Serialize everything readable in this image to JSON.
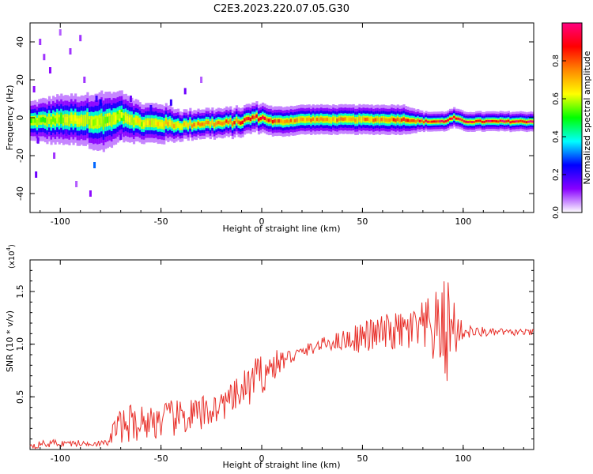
{
  "title": "C2E3.2023.220.07.05.G30",
  "chart_data": [
    {
      "type": "heatmap",
      "xlabel": "Height of straight line (km)",
      "ylabel": "Frequency (Hz)",
      "xlim": [
        -115,
        135
      ],
      "ylim": [
        -50,
        50
      ],
      "xticks": [
        -100,
        -50,
        0,
        50,
        100
      ],
      "yticks": [
        -40,
        -20,
        0,
        20,
        40
      ],
      "colorbar": {
        "label": "Normalized spectral amplitude",
        "range": [
          0,
          1
        ],
        "ticks": [
          "0.0",
          "0.2",
          "0.4",
          "0.6",
          "0.8"
        ],
        "colors": [
          "#ffffff",
          "#8800ff",
          "#0000ff",
          "#00ffff",
          "#00ff00",
          "#ffff00",
          "#ff8800",
          "#ff0000",
          "#ff0080"
        ]
      },
      "ridge": {
        "x": [
          -115,
          -100,
          -90,
          -80,
          -70,
          -60,
          -50,
          -40,
          -30,
          -20,
          -10,
          -5,
          0,
          5,
          10,
          20,
          30,
          40,
          50,
          60,
          70,
          80,
          90,
          95,
          100,
          110,
          120,
          135
        ],
        "y": [
          -2,
          -1,
          -1,
          -2,
          1,
          -3,
          -3,
          -4,
          -3,
          -3,
          -2,
          0,
          0,
          -2,
          -2,
          -1,
          -1,
          -1,
          -1,
          -1,
          -1,
          -2,
          -2,
          0,
          -2,
          -2,
          -2,
          -2
        ],
        "halfwidth_hz": [
          4,
          5,
          5,
          6,
          5,
          4,
          4,
          3,
          3,
          3,
          3,
          3,
          3,
          3,
          3,
          3,
          3,
          3,
          3,
          3,
          3,
          2,
          2,
          2,
          2,
          2,
          2,
          2
        ],
        "peak_amplitude": [
          0.55,
          0.6,
          0.65,
          0.6,
          0.6,
          0.65,
          0.7,
          0.7,
          0.75,
          0.8,
          0.85,
          0.9,
          0.9,
          0.85,
          0.8,
          0.75,
          0.75,
          0.75,
          0.75,
          0.8,
          0.85,
          0.9,
          0.95,
          0.95,
          0.95,
          0.95,
          0.98,
          1.0
        ]
      },
      "scatter_noise": [
        {
          "x": -112,
          "y": -30,
          "v": 0.15
        },
        {
          "x": -110,
          "y": 40,
          "v": 0.1
        },
        {
          "x": -108,
          "y": 32,
          "v": 0.1
        },
        {
          "x": -105,
          "y": 25,
          "v": 0.12
        },
        {
          "x": -103,
          "y": -20,
          "v": 0.1
        },
        {
          "x": -100,
          "y": 45,
          "v": 0.08
        },
        {
          "x": -95,
          "y": 35,
          "v": 0.1
        },
        {
          "x": -90,
          "y": 42,
          "v": 0.1
        },
        {
          "x": -85,
          "y": -40,
          "v": 0.12
        },
        {
          "x": -83,
          "y": -25,
          "v": 0.3
        },
        {
          "x": -82,
          "y": 10,
          "v": 0.2
        },
        {
          "x": -80,
          "y": 8,
          "v": 0.25
        },
        {
          "x": -78,
          "y": 5,
          "v": 0.2
        },
        {
          "x": -65,
          "y": 10,
          "v": 0.15
        },
        {
          "x": -55,
          "y": 5,
          "v": 0.2
        },
        {
          "x": -45,
          "y": 8,
          "v": 0.2
        },
        {
          "x": -38,
          "y": 14,
          "v": 0.15
        },
        {
          "x": -30,
          "y": 20,
          "v": 0.08
        },
        {
          "x": -113,
          "y": 15,
          "v": 0.12
        },
        {
          "x": -111,
          "y": -12,
          "v": 0.15
        },
        {
          "x": -97,
          "y": -8,
          "v": 0.15
        },
        {
          "x": -88,
          "y": 20,
          "v": 0.1
        },
        {
          "x": -92,
          "y": -35,
          "v": 0.08
        },
        {
          "x": -70,
          "y": -10,
          "v": 0.15
        }
      ]
    },
    {
      "type": "line",
      "xlabel": "Height of straight line (km)",
      "ylabel": "SNR (10 * v/v)",
      "yscale_label": "(x10",
      "yscale_exponent": "4",
      "xlim": [
        -115,
        135
      ],
      "ylim": [
        0,
        18000
      ],
      "xticks": [
        -100,
        -50,
        0,
        50,
        100
      ],
      "yticks": [
        "0.5",
        "1.0",
        "1.5"
      ],
      "ytick_values": [
        5000,
        10000,
        15000
      ],
      "series": [
        {
          "color": "#e8302a",
          "x": [
            -115,
            -112,
            -109,
            -106,
            -103,
            -100,
            -97,
            -94,
            -91,
            -88,
            -85,
            -82,
            -79,
            -76,
            -73,
            -70,
            -67,
            -64,
            -61,
            -58,
            -55,
            -52,
            -49,
            -46,
            -43,
            -40,
            -37,
            -34,
            -31,
            -28,
            -25,
            -22,
            -19,
            -16,
            -13,
            -10,
            -7,
            -4,
            -1,
            2,
            5,
            8,
            11,
            14,
            17,
            20,
            23,
            26,
            29,
            32,
            35,
            38,
            41,
            44,
            47,
            50,
            53,
            56,
            59,
            62,
            65,
            68,
            71,
            74,
            77,
            80,
            83,
            86,
            89,
            92,
            95,
            98,
            101,
            104,
            107,
            110,
            113,
            116,
            119,
            122,
            125,
            128,
            131,
            135
          ],
          "y": [
            500,
            350,
            600,
            450,
            700,
            500,
            650,
            550,
            600,
            500,
            650,
            600,
            550,
            650,
            2000,
            2200,
            2400,
            2600,
            2500,
            2700,
            2600,
            2800,
            2700,
            3000,
            2800,
            3200,
            3000,
            3300,
            3200,
            3500,
            3800,
            4000,
            4300,
            4600,
            5000,
            5500,
            6000,
            6500,
            7000,
            7400,
            7800,
            8200,
            8500,
            8800,
            9000,
            9200,
            9500,
            9700,
            9900,
            10100,
            10200,
            10300,
            10400,
            10500,
            10600,
            10700,
            10800,
            10900,
            11000,
            11100,
            11100,
            11200,
            11200,
            11300,
            11300,
            11300,
            11400,
            11400,
            11400,
            11500,
            11500,
            11300,
            11200,
            11200,
            11100,
            11200,
            11100,
            11100,
            11200,
            11100,
            11100,
            11200,
            11100,
            11100
          ],
          "noise_amplitude": [
            300,
            300,
            300,
            300,
            300,
            300,
            300,
            300,
            300,
            300,
            300,
            300,
            300,
            300,
            1500,
            1600,
            1700,
            1800,
            1700,
            1800,
            1700,
            1800,
            1700,
            1800,
            1700,
            1800,
            1700,
            1800,
            1700,
            1800,
            1500,
            1500,
            1500,
            1500,
            1600,
            1800,
            2000,
            2200,
            2000,
            1800,
            1500,
            1300,
            1000,
            800,
            700,
            600,
            600,
            600,
            600,
            700,
            800,
            900,
            1000,
            1200,
            1400,
            1500,
            1600,
            1700,
            1800,
            1800,
            1800,
            1900,
            2000,
            2200,
            2400,
            2800,
            3200,
            3600,
            4000,
            5500,
            4000,
            1200,
            800,
            600,
            500,
            500,
            400,
            350,
            350,
            300,
            300,
            300,
            300,
            300
          ]
        }
      ]
    }
  ]
}
